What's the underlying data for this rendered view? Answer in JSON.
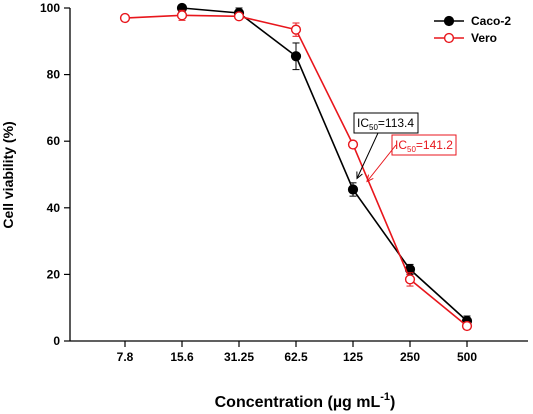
{
  "chart_data": {
    "type": "line",
    "xlabel": "Concentration (µg mL",
    "xlabel_sup": "-1",
    "xlabel_close": ")",
    "ylabel": "Cell viability (%)",
    "categories": [
      "7.8",
      "15.6",
      "31.25",
      "62.5",
      "125",
      "250",
      "500"
    ],
    "ylim": [
      0,
      100
    ],
    "yticks": [
      "0",
      "20",
      "40",
      "60",
      "80",
      "100"
    ],
    "grid": false,
    "legend_position": "top-right",
    "series": [
      {
        "name": "Caco-2",
        "color": "#000000",
        "marker": "filled-circle",
        "values": [
          null,
          100,
          98.5,
          85.5,
          45.5,
          21.5,
          6.0
        ],
        "errors": [
          null,
          0.8,
          1.5,
          4.0,
          2.0,
          1.5,
          1.5
        ]
      },
      {
        "name": "Vero",
        "color": "#e8161c",
        "marker": "open-circle",
        "values": [
          97,
          97.8,
          97.5,
          93.5,
          59,
          18.5,
          4.5
        ],
        "errors": [
          0.5,
          1.5,
          1.0,
          2.0,
          1.0,
          2.0,
          1.0
        ]
      }
    ],
    "annotations": [
      {
        "prefix": "IC",
        "sub": "50",
        "value": "=113.4",
        "color": "#000000",
        "x_category": 4,
        "y_value": 45.5
      },
      {
        "prefix": "IC",
        "sub": "50",
        "value": "=141.2",
        "color": "#e8161c",
        "x_category": 4,
        "y_value": 50
      }
    ]
  }
}
